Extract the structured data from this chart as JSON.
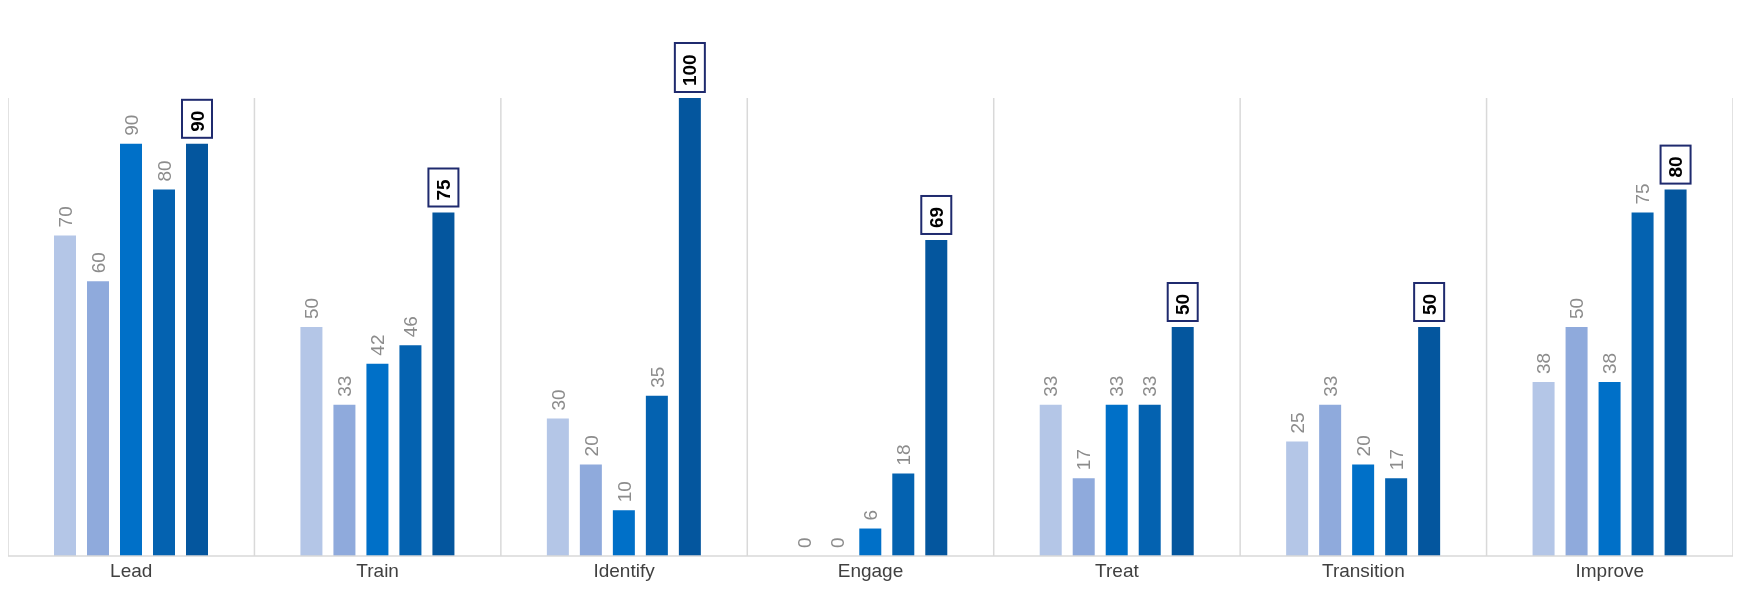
{
  "chart_data": {
    "type": "bar",
    "categories": [
      "Lead",
      "Train",
      "Identify",
      "Engage",
      "Treat",
      "Transition",
      "Improve"
    ],
    "series": [
      {
        "color": "#b4c6e7",
        "values": [
          70,
          50,
          30,
          0,
          33,
          25,
          38
        ]
      },
      {
        "color": "#8faadc",
        "values": [
          60,
          33,
          20,
          0,
          17,
          33,
          50
        ]
      },
      {
        "color": "#0070c8",
        "values": [
          90,
          42,
          10,
          6,
          33,
          20,
          38
        ]
      },
      {
        "color": "#0462b0",
        "values": [
          80,
          46,
          35,
          18,
          33,
          17,
          75
        ]
      },
      {
        "color": "#04569e",
        "values": [
          90,
          75,
          100,
          69,
          50,
          50,
          80
        ]
      }
    ],
    "data_labels": true,
    "grid": "x"
  }
}
